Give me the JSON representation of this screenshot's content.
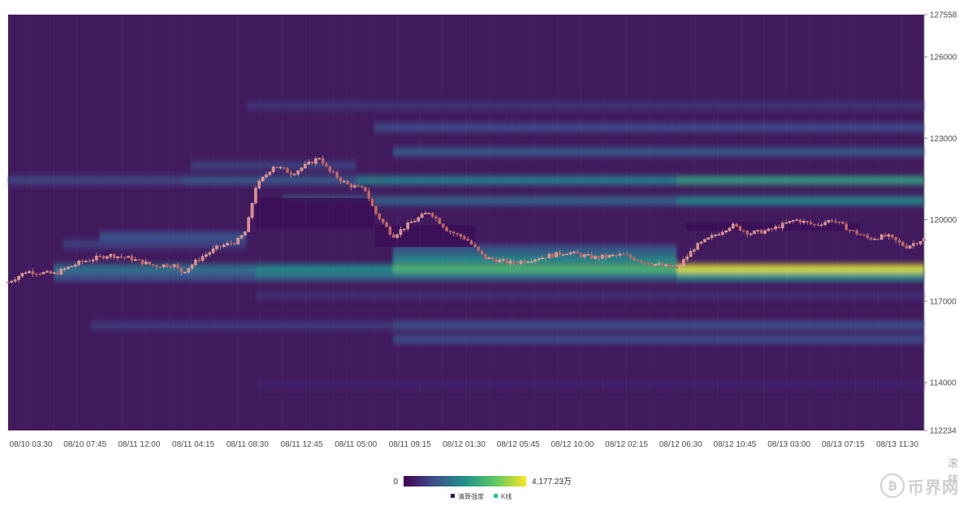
{
  "chart_data": {
    "type": "heatmap",
    "x_ticks": [
      "08/10 03:30",
      "08/10 07:45",
      "08/11 12:00",
      "08/11 04:15",
      "08/11 08:30",
      "08/11 12:45",
      "08/11 05:00",
      "08/11 09:15",
      "08/12 01:30",
      "08/12 05:45",
      "08/12 10:00",
      "08/12 02:15",
      "08/12 06:30",
      "08/12 10:45",
      "08/13 03:00",
      "08/13 07:15",
      "08/13 11:30"
    ],
    "y_ticks": [
      {
        "value": 112234,
        "label": "112234"
      },
      {
        "value": 114000,
        "label": "114000"
      },
      {
        "value": 117000,
        "label": "117000"
      },
      {
        "value": 120000,
        "label": "120000"
      },
      {
        "value": 123000,
        "label": "123000"
      },
      {
        "value": 126000,
        "label": "126000"
      },
      {
        "value": 127558,
        "label": "127558"
      }
    ],
    "ylim": [
      112234,
      127558
    ],
    "color_scale": {
      "min_label": "0",
      "max_label": "4,177.23万",
      "colors": [
        "#440154",
        "#3b528b",
        "#21918c",
        "#5ec962",
        "#fde725"
      ]
    },
    "legend": [
      {
        "name": "清算强度",
        "color": "#3a1760"
      },
      {
        "name": "K线",
        "color": "#22c39a"
      }
    ],
    "bands": [
      {
        "price": 121450,
        "from": 0.0,
        "to": 0.19,
        "intensity": 0.22
      },
      {
        "price": 121450,
        "from": 0.19,
        "to": 0.38,
        "intensity": 0.28
      },
      {
        "price": 121450,
        "from": 0.38,
        "to": 0.73,
        "intensity": 0.45
      },
      {
        "price": 121450,
        "from": 0.73,
        "to": 1.0,
        "intensity": 0.58
      },
      {
        "price": 120700,
        "from": 0.3,
        "to": 0.73,
        "intensity": 0.33
      },
      {
        "price": 120700,
        "from": 0.73,
        "to": 1.0,
        "intensity": 0.48
      },
      {
        "price": 119400,
        "from": 0.1,
        "to": 0.26,
        "intensity": 0.25
      },
      {
        "price": 119100,
        "from": 0.06,
        "to": 0.26,
        "intensity": 0.2
      },
      {
        "price": 118900,
        "from": 0.42,
        "to": 0.73,
        "intensity": 0.3
      },
      {
        "price": 118550,
        "from": 0.42,
        "to": 0.73,
        "intensity": 0.48
      },
      {
        "price": 118200,
        "from": 0.05,
        "to": 0.27,
        "intensity": 0.38
      },
      {
        "price": 118200,
        "from": 0.27,
        "to": 0.42,
        "intensity": 0.47
      },
      {
        "price": 118200,
        "from": 0.42,
        "to": 0.73,
        "intensity": 0.68
      },
      {
        "price": 118200,
        "from": 0.73,
        "to": 1.0,
        "intensity": 0.95
      },
      {
        "price": 117900,
        "from": 0.05,
        "to": 0.27,
        "intensity": 0.26
      },
      {
        "price": 117900,
        "from": 0.27,
        "to": 0.73,
        "intensity": 0.35
      },
      {
        "price": 117900,
        "from": 0.73,
        "to": 1.0,
        "intensity": 0.5
      },
      {
        "price": 116100,
        "from": 0.09,
        "to": 0.42,
        "intensity": 0.18
      },
      {
        "price": 116100,
        "from": 0.42,
        "to": 1.0,
        "intensity": 0.25
      },
      {
        "price": 115600,
        "from": 0.42,
        "to": 1.0,
        "intensity": 0.24
      },
      {
        "price": 124200,
        "from": 0.26,
        "to": 1.0,
        "intensity": 0.16
      },
      {
        "price": 123400,
        "from": 0.4,
        "to": 1.0,
        "intensity": 0.24
      },
      {
        "price": 122500,
        "from": 0.42,
        "to": 1.0,
        "intensity": 0.3
      },
      {
        "price": 122000,
        "from": 0.2,
        "to": 0.38,
        "intensity": 0.2
      },
      {
        "price": 117200,
        "from": 0.27,
        "to": 1.0,
        "intensity": 0.14
      },
      {
        "price": 113900,
        "from": 0.27,
        "to": 1.0,
        "intensity": 0.1
      }
    ],
    "dark_zones": [
      {
        "from": 0.27,
        "to": 0.4,
        "low": 119700,
        "high": 120800
      },
      {
        "from": 0.4,
        "to": 0.51,
        "low": 119000,
        "high": 119800
      },
      {
        "from": 0.74,
        "to": 0.93,
        "low": 119600,
        "high": 119900
      }
    ],
    "price_path": [
      {
        "t": 0.0,
        "price": 117700
      },
      {
        "t": 0.02,
        "price": 118100
      },
      {
        "t": 0.05,
        "price": 118000
      },
      {
        "t": 0.08,
        "price": 118450
      },
      {
        "t": 0.11,
        "price": 118700
      },
      {
        "t": 0.13,
        "price": 118600
      },
      {
        "t": 0.16,
        "price": 118300
      },
      {
        "t": 0.18,
        "price": 118350
      },
      {
        "t": 0.19,
        "price": 118050
      },
      {
        "t": 0.21,
        "price": 118600
      },
      {
        "t": 0.23,
        "price": 119000
      },
      {
        "t": 0.25,
        "price": 119200
      },
      {
        "t": 0.26,
        "price": 119600
      },
      {
        "t": 0.27,
        "price": 121200
      },
      {
        "t": 0.29,
        "price": 122000
      },
      {
        "t": 0.31,
        "price": 121700
      },
      {
        "t": 0.33,
        "price": 122100
      },
      {
        "t": 0.34,
        "price": 122300
      },
      {
        "t": 0.35,
        "price": 121800
      },
      {
        "t": 0.37,
        "price": 121300
      },
      {
        "t": 0.39,
        "price": 121100
      },
      {
        "t": 0.4,
        "price": 120300
      },
      {
        "t": 0.42,
        "price": 119400
      },
      {
        "t": 0.44,
        "price": 119900
      },
      {
        "t": 0.46,
        "price": 120300
      },
      {
        "t": 0.48,
        "price": 119600
      },
      {
        "t": 0.5,
        "price": 119300
      },
      {
        "t": 0.52,
        "price": 118600
      },
      {
        "t": 0.55,
        "price": 118400
      },
      {
        "t": 0.58,
        "price": 118600
      },
      {
        "t": 0.61,
        "price": 118800
      },
      {
        "t": 0.64,
        "price": 118600
      },
      {
        "t": 0.67,
        "price": 118700
      },
      {
        "t": 0.7,
        "price": 118400
      },
      {
        "t": 0.73,
        "price": 118200
      },
      {
        "t": 0.75,
        "price": 119000
      },
      {
        "t": 0.77,
        "price": 119400
      },
      {
        "t": 0.79,
        "price": 119800
      },
      {
        "t": 0.81,
        "price": 119500
      },
      {
        "t": 0.83,
        "price": 119600
      },
      {
        "t": 0.86,
        "price": 120000
      },
      {
        "t": 0.88,
        "price": 119800
      },
      {
        "t": 0.9,
        "price": 120000
      },
      {
        "t": 0.92,
        "price": 119600
      },
      {
        "t": 0.94,
        "price": 119300
      },
      {
        "t": 0.96,
        "price": 119400
      },
      {
        "t": 0.98,
        "price": 119000
      },
      {
        "t": 1.0,
        "price": 119300
      }
    ]
  },
  "watermark": {
    "icon": "bitcoin-coin-icon",
    "text": "币界网",
    "side_text": "滚转"
  }
}
